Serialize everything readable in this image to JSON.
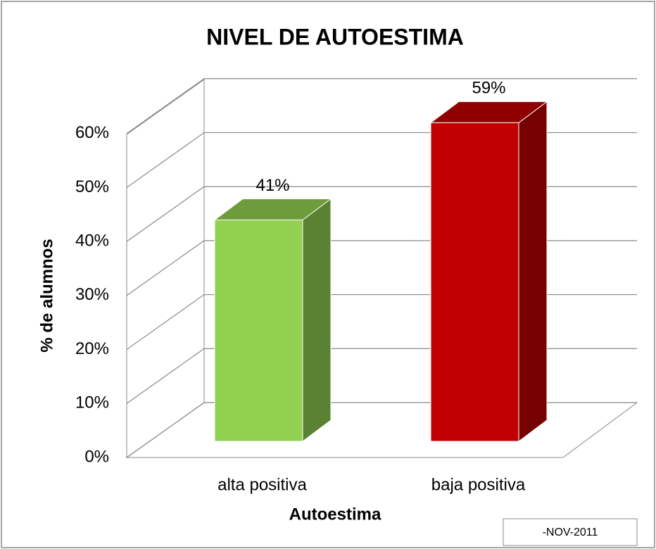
{
  "chart_data": {
    "type": "bar3d",
    "title": "NIVEL DE AUTOESTIMA",
    "x_label": "Autoestima",
    "y_label": "% de alumnos",
    "categories": [
      "alta positiva",
      "baja positiva"
    ],
    "values": [
      41,
      59
    ],
    "value_labels": [
      "41%",
      "59%"
    ],
    "colors": [
      "#92d050",
      "#c00000"
    ],
    "ylim": [
      0,
      70
    ],
    "yticks": [
      {
        "value": 0,
        "label": "0%"
      },
      {
        "value": 10,
        "label": "10%"
      },
      {
        "value": 20,
        "label": "20%"
      },
      {
        "value": 30,
        "label": "30%"
      },
      {
        "value": 40,
        "label": "40%"
      },
      {
        "value": 50,
        "label": "50%"
      },
      {
        "value": 60,
        "label": "60%"
      }
    ],
    "grid": true,
    "annotation": "-NOV-2011"
  }
}
